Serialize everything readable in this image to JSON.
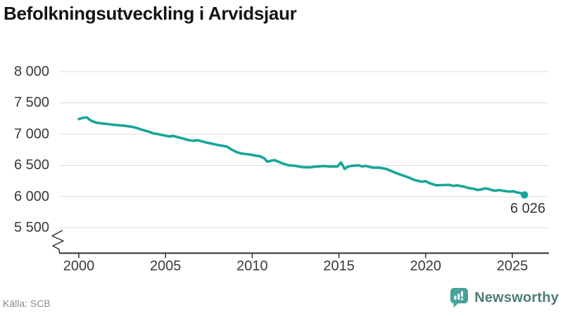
{
  "title": "Befolkningsutveckling i Arvidsjaur",
  "source": {
    "text": "Källa: SCB"
  },
  "branding": {
    "name": "Newsworthy",
    "icon": "newsworthy-speech-bubble-bar-chart-icon"
  },
  "colors": {
    "line": "#16a69a",
    "end_dot": "#16a69a",
    "grid": "#dcdcdc",
    "axis": "#2e2e2e",
    "tick_text": "#3a3a3a",
    "title_text": "#141414",
    "source_text": "#8a8a8a",
    "brand_icon": "#46a29a",
    "brand_text": "#4d7c78",
    "background": "#ffffff"
  },
  "chart_data": {
    "type": "line",
    "title": "Befolkningsutveckling i Arvidsjaur",
    "xlabel": "",
    "ylabel": "",
    "x_ticks": [
      2000,
      2005,
      2010,
      2015,
      2020,
      2025
    ],
    "y_ticks": [
      {
        "value": 8000,
        "label": "8 000"
      },
      {
        "value": 7500,
        "label": "7 500"
      },
      {
        "value": 7000,
        "label": "7 000"
      },
      {
        "value": 6500,
        "label": "6 500"
      },
      {
        "value": 6000,
        "label": "6 000"
      },
      {
        "value": 5500,
        "label": "5 500"
      }
    ],
    "ylim": [
      5500,
      8000
    ],
    "xlim": [
      2000,
      2027
    ],
    "grid": true,
    "axis_break": true,
    "legend": "none",
    "end_label": "6 026",
    "end_point": {
      "x": 2025.7,
      "y": 6026
    },
    "series": [
      {
        "points": [
          [
            2000.0,
            7240
          ],
          [
            2000.2,
            7258
          ],
          [
            2000.45,
            7268
          ],
          [
            2000.7,
            7215
          ],
          [
            2001.0,
            7183
          ],
          [
            2001.3,
            7172
          ],
          [
            2001.6,
            7163
          ],
          [
            2001.9,
            7152
          ],
          [
            2002.2,
            7143
          ],
          [
            2002.5,
            7138
          ],
          [
            2002.8,
            7128
          ],
          [
            2003.1,
            7115
          ],
          [
            2003.4,
            7092
          ],
          [
            2003.7,
            7065
          ],
          [
            2004.0,
            7042
          ],
          [
            2004.3,
            7012
          ],
          [
            2004.6,
            6998
          ],
          [
            2004.9,
            6980
          ],
          [
            2005.2,
            6962
          ],
          [
            2005.45,
            6970
          ],
          [
            2005.7,
            6952
          ],
          [
            2006.0,
            6930
          ],
          [
            2006.3,
            6905
          ],
          [
            2006.6,
            6893
          ],
          [
            2006.85,
            6902
          ],
          [
            2007.1,
            6885
          ],
          [
            2007.4,
            6862
          ],
          [
            2007.7,
            6845
          ],
          [
            2008.0,
            6826
          ],
          [
            2008.3,
            6812
          ],
          [
            2008.55,
            6798
          ],
          [
            2008.8,
            6755
          ],
          [
            2009.1,
            6712
          ],
          [
            2009.4,
            6688
          ],
          [
            2009.7,
            6678
          ],
          [
            2010.0,
            6668
          ],
          [
            2010.2,
            6655
          ],
          [
            2010.45,
            6645
          ],
          [
            2010.7,
            6612
          ],
          [
            2010.87,
            6558
          ],
          [
            2011.1,
            6575
          ],
          [
            2011.27,
            6584
          ],
          [
            2011.5,
            6560
          ],
          [
            2011.68,
            6538
          ],
          [
            2012.08,
            6502
          ],
          [
            2012.5,
            6492
          ],
          [
            2012.9,
            6471
          ],
          [
            2013.3,
            6468
          ],
          [
            2013.7,
            6480
          ],
          [
            2014.1,
            6489
          ],
          [
            2014.5,
            6481
          ],
          [
            2014.92,
            6481
          ],
          [
            2015.12,
            6545
          ],
          [
            2015.33,
            6443
          ],
          [
            2015.53,
            6481
          ],
          [
            2015.73,
            6492
          ],
          [
            2016.14,
            6500
          ],
          [
            2016.34,
            6481
          ],
          [
            2016.55,
            6492
          ],
          [
            2016.95,
            6462
          ],
          [
            2017.36,
            6462
          ],
          [
            2017.76,
            6440
          ],
          [
            2018.17,
            6390
          ],
          [
            2018.57,
            6350
          ],
          [
            2018.98,
            6311
          ],
          [
            2019.38,
            6263
          ],
          [
            2019.79,
            6236
          ],
          [
            2020.0,
            6248
          ],
          [
            2020.2,
            6217
          ],
          [
            2020.4,
            6199
          ],
          [
            2020.6,
            6181
          ],
          [
            2021.0,
            6185
          ],
          [
            2021.4,
            6187
          ],
          [
            2021.6,
            6169
          ],
          [
            2021.8,
            6180
          ],
          [
            2022.0,
            6169
          ],
          [
            2022.2,
            6161
          ],
          [
            2022.4,
            6142
          ],
          [
            2022.6,
            6131
          ],
          [
            2022.8,
            6124
          ],
          [
            2023.0,
            6105
          ],
          [
            2023.2,
            6113
          ],
          [
            2023.4,
            6131
          ],
          [
            2023.6,
            6124
          ],
          [
            2023.8,
            6105
          ],
          [
            2024.0,
            6094
          ],
          [
            2024.25,
            6105
          ],
          [
            2024.45,
            6094
          ],
          [
            2024.65,
            6086
          ],
          [
            2024.85,
            6079
          ],
          [
            2025.05,
            6086
          ],
          [
            2025.25,
            6068
          ],
          [
            2025.45,
            6057
          ],
          [
            2025.7,
            6026
          ]
        ]
      }
    ]
  }
}
